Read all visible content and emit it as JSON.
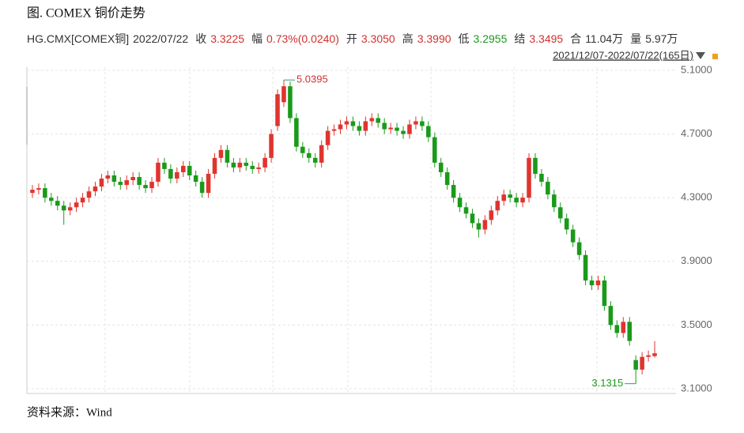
{
  "header": {
    "title": "图. COMEX 铜价走势",
    "info": [
      {
        "label": "HG.CMX[COMEX铜]",
        "value": "2022/07/22",
        "color": "#333333"
      },
      {
        "label": "收",
        "value": "3.3225",
        "color": "#d0312d"
      },
      {
        "label": "幅",
        "value": "0.73%(0.0240)",
        "color": "#d0312d"
      },
      {
        "label": "开",
        "value": "3.3050",
        "color": "#d0312d"
      },
      {
        "label": "高",
        "value": "3.3990",
        "color": "#d0312d"
      },
      {
        "label": "低",
        "value": "3.2955",
        "color": "#1a9a1a"
      },
      {
        "label": "结",
        "value": "3.3495",
        "color": "#d0312d"
      },
      {
        "label": "合",
        "value": "11.04万",
        "color": "#333333"
      },
      {
        "label": "量",
        "value": "5.97万",
        "color": "#333333"
      }
    ],
    "date_range": "2021/12/07-2022/07/22(165日)"
  },
  "source": "资料来源：Wind",
  "chart_data": {
    "type": "candlestick",
    "up_color": "#e0342f",
    "down_color": "#1a9a1a",
    "grid": true,
    "ylim": [
      3.07,
      5.12
    ],
    "yticks": [
      {
        "value": 3.1,
        "label": "3.1000"
      },
      {
        "value": 3.5,
        "label": "3.5000"
      },
      {
        "value": 3.9,
        "label": "3.9000"
      },
      {
        "value": 4.3,
        "label": "4.3000"
      },
      {
        "value": 4.7,
        "label": "4.7000"
      },
      {
        "value": 5.1,
        "label": "5.1000"
      }
    ],
    "open": [
      4.33,
      4.35,
      4.36,
      4.3,
      4.28,
      4.25,
      4.22,
      4.24,
      4.27,
      4.3,
      4.34,
      4.37,
      4.42,
      4.44,
      4.4,
      4.38,
      4.41,
      4.43,
      4.38,
      4.36,
      4.4,
      4.52,
      4.48,
      4.42,
      4.46,
      4.5,
      4.44,
      4.4,
      4.33,
      4.45,
      4.55,
      4.6,
      4.52,
      4.49,
      4.52,
      4.5,
      4.48,
      4.49,
      4.55,
      4.75,
      4.9,
      5.0,
      4.8,
      4.62,
      4.58,
      4.55,
      4.52,
      4.63,
      4.72,
      4.73,
      4.76,
      4.78,
      4.75,
      4.72,
      4.78,
      4.8,
      4.77,
      4.73,
      4.74,
      4.72,
      4.7,
      4.76,
      4.78,
      4.75,
      4.68,
      4.52,
      4.46,
      4.38,
      4.3,
      4.24,
      4.2,
      4.14,
      4.1,
      4.16,
      4.22,
      4.28,
      4.32,
      4.3,
      4.27,
      4.3,
      4.55,
      4.45,
      4.4,
      4.32,
      4.24,
      4.17,
      4.1,
      4.02,
      3.94,
      3.78,
      3.75,
      3.78,
      3.62,
      3.5,
      3.45,
      3.52,
      3.28,
      3.22,
      3.3,
      3.305
    ],
    "high": [
      4.38,
      4.39,
      4.39,
      4.33,
      4.31,
      4.28,
      4.27,
      4.3,
      4.33,
      4.37,
      4.4,
      4.45,
      4.47,
      4.47,
      4.43,
      4.44,
      4.46,
      4.46,
      4.41,
      4.43,
      4.55,
      4.55,
      4.51,
      4.49,
      4.53,
      4.53,
      4.47,
      4.43,
      4.48,
      4.58,
      4.63,
      4.63,
      4.55,
      4.55,
      4.55,
      4.53,
      4.52,
      4.58,
      4.73,
      4.98,
      5.0395,
      5.03,
      4.83,
      4.65,
      4.61,
      4.58,
      4.66,
      4.75,
      4.76,
      4.79,
      4.81,
      4.81,
      4.78,
      4.81,
      4.83,
      4.83,
      4.8,
      4.77,
      4.77,
      4.75,
      4.79,
      4.81,
      4.81,
      4.78,
      4.71,
      4.55,
      4.49,
      4.41,
      4.33,
      4.27,
      4.23,
      4.17,
      4.19,
      4.25,
      4.31,
      4.35,
      4.35,
      4.33,
      4.33,
      4.58,
      4.58,
      4.48,
      4.43,
      4.35,
      4.27,
      4.2,
      4.13,
      4.05,
      3.97,
      3.81,
      3.81,
      3.81,
      3.65,
      3.53,
      3.55,
      3.55,
      3.31,
      3.33,
      3.34,
      3.399
    ],
    "low": [
      4.3,
      4.32,
      4.27,
      4.25,
      4.22,
      4.13,
      4.19,
      4.21,
      4.24,
      4.27,
      4.31,
      4.34,
      4.39,
      4.37,
      4.35,
      4.35,
      4.38,
      4.35,
      4.33,
      4.33,
      4.37,
      4.45,
      4.39,
      4.39,
      4.43,
      4.41,
      4.37,
      4.3,
      4.3,
      4.42,
      4.52,
      4.49,
      4.46,
      4.46,
      4.47,
      4.45,
      4.45,
      4.46,
      4.52,
      4.72,
      4.87,
      4.77,
      4.59,
      4.55,
      4.52,
      4.49,
      4.49,
      4.6,
      4.69,
      4.7,
      4.73,
      4.72,
      4.69,
      4.69,
      4.75,
      4.74,
      4.7,
      4.7,
      4.69,
      4.67,
      4.67,
      4.73,
      4.72,
      4.65,
      4.49,
      4.43,
      4.35,
      4.27,
      4.21,
      4.17,
      4.11,
      4.05,
      4.07,
      4.13,
      4.19,
      4.25,
      4.27,
      4.24,
      4.24,
      4.27,
      4.42,
      4.37,
      4.29,
      4.21,
      4.14,
      4.07,
      3.99,
      3.91,
      3.75,
      3.72,
      3.72,
      3.59,
      3.47,
      3.42,
      3.42,
      3.37,
      3.1315,
      3.19,
      3.27,
      3.2955
    ],
    "close": [
      4.35,
      4.36,
      4.3,
      4.28,
      4.25,
      4.22,
      4.24,
      4.27,
      4.3,
      4.34,
      4.37,
      4.42,
      4.44,
      4.4,
      4.38,
      4.41,
      4.43,
      4.38,
      4.36,
      4.4,
      4.52,
      4.48,
      4.42,
      4.46,
      4.5,
      4.44,
      4.4,
      4.33,
      4.45,
      4.55,
      4.6,
      4.52,
      4.49,
      4.52,
      4.5,
      4.48,
      4.49,
      4.55,
      4.7,
      4.95,
      5.0,
      4.8,
      4.62,
      4.58,
      4.55,
      4.52,
      4.63,
      4.72,
      4.73,
      4.76,
      4.78,
      4.75,
      4.72,
      4.78,
      4.8,
      4.77,
      4.73,
      4.74,
      4.72,
      4.7,
      4.76,
      4.78,
      4.75,
      4.68,
      4.52,
      4.46,
      4.38,
      4.3,
      4.24,
      4.2,
      4.14,
      4.1,
      4.16,
      4.22,
      4.28,
      4.32,
      4.3,
      4.27,
      4.3,
      4.55,
      4.45,
      4.4,
      4.32,
      4.24,
      4.17,
      4.1,
      4.02,
      3.94,
      3.78,
      3.75,
      3.78,
      3.62,
      3.5,
      3.45,
      3.52,
      3.4,
      3.22,
      3.3,
      3.31,
      3.3225
    ]
  }
}
